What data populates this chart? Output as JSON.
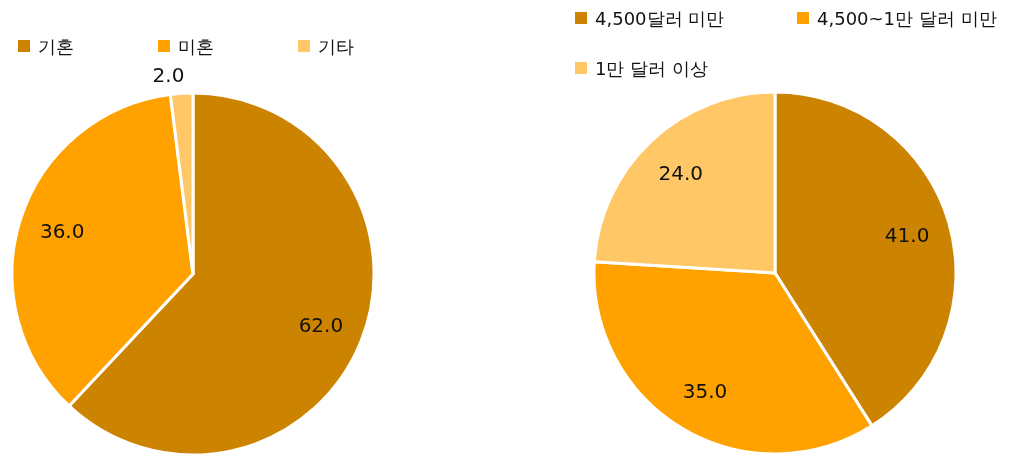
{
  "chart_data": [
    {
      "type": "pie",
      "categories": [
        "기혼",
        "미혼",
        "기타"
      ],
      "values": [
        62,
        36,
        2
      ],
      "value_labels": [
        "62.0",
        "36.0",
        "2.0"
      ],
      "colors": [
        "#cc8400",
        "#ffa200",
        "#ffc766"
      ],
      "legend": "top"
    },
    {
      "type": "pie",
      "categories": [
        "4,500달러 미만",
        "4,500~1만 달러 미만",
        "1만 달러 이상"
      ],
      "values": [
        41,
        35,
        24
      ],
      "value_labels": [
        "41.0",
        "35.0",
        "24.0"
      ],
      "colors": [
        "#cc8400",
        "#ffa200",
        "#ffc766"
      ],
      "legend": "top"
    }
  ]
}
